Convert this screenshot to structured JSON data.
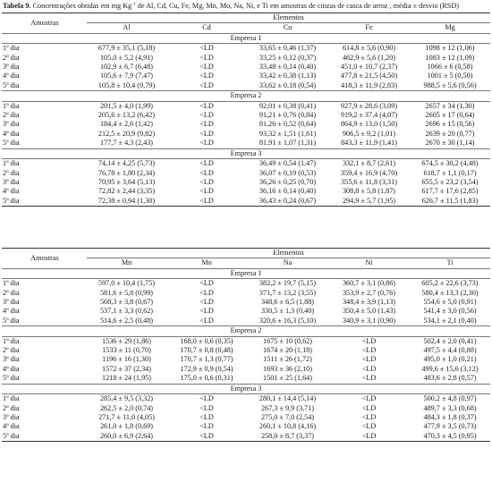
{
  "caption": {
    "label": "Tabela 9.",
    "text_pre": " Concentrações obtidas em mg Kg",
    "sup": "-1",
    "text_post": " de Al, Cd, Cu, Fe, Mg, Mn, Mo, Na, Ni, e Ti em amostras de cinzas de casca de arroz , média ± desvio (RSD)"
  },
  "table1": {
    "row_header": "Amostras",
    "group_header": "Elementos",
    "columns": [
      "Al",
      "Cd",
      "Cu",
      "Fe",
      "Mg"
    ],
    "groups": [
      {
        "name": "Empresa 1",
        "rows": [
          {
            "day": "1º dia",
            "cells": [
              "677,9 ± 35,1 (5,18)",
              "<LD",
              "33,65 ± 0,46 (1,37)",
              "614,8 ± 5,6 (0,90)",
              "1098 ± 12 (1,06)"
            ]
          },
          {
            "day": "2º dia",
            "cells": [
              "105,0 ± 5,2 (4,91)",
              "<LD",
              "33,25 ± 0,12 (0,37)",
              "462,9 ± 5,6 (1,20)",
              "1083 ± 12 (1,09)"
            ]
          },
          {
            "day": "3º dia",
            "cells": [
              "102,9 ± 6,7 (6,48)",
              "<LD",
              "33,48 ± 0,14 (0,40)",
              "451,0 ± 10,7 (2,37)",
              "1066 ± 6 (0,58)"
            ]
          },
          {
            "day": "4º dia",
            "cells": [
              "105,6 ± 7,9 (7,47)",
              "<LD",
              "33,42 ± 0,38 (1,13)",
              "477,8 ± 21,5 (4,50)",
              "1001 ± 5 (0,50)"
            ]
          },
          {
            "day": "5º dia",
            "cells": [
              "105,8 ± 10,4 (9,79)",
              "<LD",
              "33,62 ± 0,18 (0,54)",
              "418,3 ± 11,9 (2,83)",
              "988,5 ± 5,6 (0,56)"
            ]
          }
        ]
      },
      {
        "name": "Empresa 2",
        "rows": [
          {
            "day": "1º dia",
            "cells": [
              "201,5 ± 4,0 (1,99)",
              "<LD",
              "92,01 ± 0,38 (0,41)",
              "927,9 ± 28,6 (3,09)",
              "2657 ± 34 (1,30)"
            ]
          },
          {
            "day": "2º dia",
            "cells": [
              "205,6 ± 13,2 (6,42)",
              "<LD",
              "91,21 ± 0,76 (0,84)",
              "919,2 ± 37,4 (4,07)",
              "2605 ± 17 (0,64)"
            ]
          },
          {
            "day": "3º dia",
            "cells": [
              "184,4 ± 2,6 (1,42)",
              "<LD",
              "81,26 ± 0,52 (0,64)",
              "864,9 ± 13,0 (1,50)",
              "2696 ± 15 (0,56)"
            ]
          },
          {
            "day": "4º dia",
            "cells": [
              "212,5 ± 20,9 (9,82)",
              "<LD",
              "93,32 ± 1,51 (1,61)",
              "906,5 ± 9,2 (1,01)",
              "2639 ± 20 (0,77)"
            ]
          },
          {
            "day": "5º dia",
            "cells": [
              "177,7 ± 4,3 (2,43)",
              "<LD",
              "81,91 ± 1,07 (1,31)",
              "843,3 ± 11,9 (1,41)",
              "2670 ± 30 (1,14)"
            ]
          }
        ]
      },
      {
        "name": "Empresa 3",
        "rows": [
          {
            "day": "1º dia",
            "cells": [
              "74,14 ± 4,25 (5,73)",
              "<LD",
              "36,49 ± 0,54 (1,47)",
              "332,1 ± 8,7 (2,61)",
              "674,5 ± 30,2 (4,48)"
            ]
          },
          {
            "day": "2º dia",
            "cells": [
              "76,78 ± 1,80 (2,34)",
              "<LD",
              "36,07 ± 0,19 (0,53)",
              "359,4 ± 16,9 (4,70)",
              "618,7 ± 1,1 (0,17)"
            ]
          },
          {
            "day": "3º dia",
            "cells": [
              "70,95 ± 3,64 (5,13)",
              "<LD",
              "36,26 ± 0,25 (0,70)",
              "355,6 ± 11,8 (3,31)",
              "655,5 ± 23,2 (3,54)"
            ]
          },
          {
            "day": "4º dia",
            "cells": [
              "72,82 ± 2,44 (3,35)",
              "<LD",
              "36,16 ± 0,14 (0,40)",
              "308,8 ± 5,8 (1,87)",
              "617,7 ± 17,6 (2,85)"
            ]
          },
          {
            "day": "5º dia",
            "cells": [
              "72,38 ± 0,94 (1,30)",
              "<LD",
              "36,43 ± 0,24 (0,67)",
              "294,9 ± 5,7 (1,95)",
              "626,7 ± 11,5 (1,83)"
            ]
          }
        ]
      }
    ]
  },
  "table2": {
    "row_header": "Amostras",
    "group_header": "Elementos",
    "columns": [
      "Mn",
      "Mo",
      "Na",
      "Ni",
      "Ti"
    ],
    "groups": [
      {
        "name": "Empresa 1",
        "rows": [
          {
            "day": "1º dia",
            "cells": [
              "597,0 ± 10,4 (1,75)",
              "<LD",
              "382,2 ± 19,7 (5,15)",
              "360,7 ± 3,1 (0,86)",
              "605,2 ± 22,6 (3,73)"
            ]
          },
          {
            "day": "2º dia",
            "cells": [
              "581,6 ± 5,8 (0,99)",
              "<LD",
              "371,7 ± 13,2 (3,55)",
              "353,9 ± 2,7 (0,76)",
              "580,4 ± 13,3 (2,30)"
            ]
          },
          {
            "day": "3º dia",
            "cells": [
              "568,3 ± 3,8 (0,67)",
              "<LD",
              "348,6 ± 6,5 (1,88)",
              "348,4 ± 3,9 (1,13)",
              "554,6 ± 5,0 (0,91)"
            ]
          },
          {
            "day": "4º dia",
            "cells": [
              "537,1 ± 3,3 (0,62)",
              "<LD",
              "330,5 ± 1,3 (0,40)",
              "350,4 ± 5,0 (1,43)",
              "541,4 ± 3,0 (0,56)"
            ]
          },
          {
            "day": "5º dia",
            "cells": [
              "514,6 ± 2,5 (0,48)",
              "<LD",
              "320,6 ± 16,3 (5,10)",
              "340,9 ± 3,1 (0,90)",
              "534,1 ± 2,1 (0,40)"
            ]
          }
        ]
      },
      {
        "name": "Empresa 2",
        "rows": [
          {
            "day": "1º dia",
            "cells": [
              "1536 ± 29 (1,86)",
              "168,0 ± 0,6 (0,35)",
              "1675 ± 10 (0,62)",
              "<LD",
              "502,4 ± 2,0 (0,41)"
            ]
          },
          {
            "day": "2º dia",
            "cells": [
              "1533 ± 11 (0,70)",
              "170,7 ± 0,8 (0,48)",
              "1674 ± 20 (1,18)",
              "<LD",
              "497,5 ± 4,4 (0,88)"
            ]
          },
          {
            "day": "3º dia",
            "cells": [
              "1196 ± 16 (1,30)",
              "170,7 ± 1,3 (0,77)",
              "1511 ± 26 (1,72)",
              "<LD",
              "495,0 ± 1,0 (0,21)"
            ]
          },
          {
            "day": "4º dia",
            "cells": [
              "1572 ± 37 (2,34)",
              "172,9 ± 0,9 (0,54)",
              "1693 ± 36 (2,10)",
              "<LD",
              "499,6 ± 15,6 (3,12)"
            ]
          },
          {
            "day": "5º dia",
            "cells": [
              "1218 ± 24 (1,95)",
              "175,0 ± 0,6 (0,31)",
              "1501 ± 25 (1,64)",
              "<LD",
              "483,6 ± 2,8 (0,57)"
            ]
          }
        ]
      },
      {
        "name": "Empresa 3",
        "rows": [
          {
            "day": "1º dia",
            "cells": [
              "285,4 ± 9,5 (3,32)",
              "<LD",
              "280,1 ± 14,4 (5,14)",
              "<LD",
              "500,2 ± 4,8 (0,97)"
            ]
          },
          {
            "day": "2º dia",
            "cells": [
              "262,5 ± 2,0 (0,74)",
              "<LD",
              "267,3 ± 9,9 (3,71)",
              "<LD",
              "489,7 ± 3,3 (0,68)"
            ]
          },
          {
            "day": "3º dia",
            "cells": [
              "271,7 ± 11,0 (4,05)",
              "<LD",
              "275,0 ± 7,0 (2,54)",
              "<LD",
              "484,3 ± 1,8 (0,37)"
            ]
          },
          {
            "day": "4º dia",
            "cells": [
              "261,0 ± 1,8 (0,69)",
              "<LD",
              "260,1 ± 10,8 (4,16)",
              "<LD",
              "477,9 ± 3,5 (0,73)"
            ]
          },
          {
            "day": "5º dia",
            "cells": [
              "260,0 ± 6,9 (2,64)",
              "<LD",
              "258,0 ± 8,7 (3,37)",
              "<LD",
              "470,3 ± 4,5 (0,95)"
            ]
          }
        ]
      }
    ]
  }
}
